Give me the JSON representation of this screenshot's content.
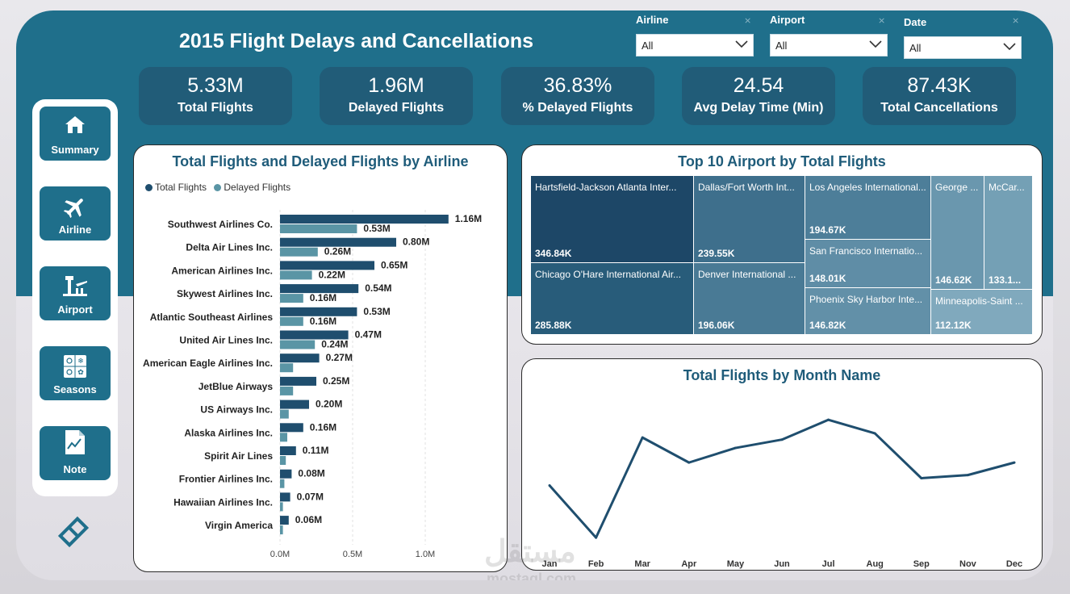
{
  "header": {
    "title": "2015 Flight Delays and Cancellations"
  },
  "filters": [
    {
      "label": "Airline",
      "value": "All"
    },
    {
      "label": "Airport",
      "value": "All"
    },
    {
      "label": "Date",
      "value": "All"
    }
  ],
  "kpis": [
    {
      "value": "5.33M",
      "label": "Total Flights"
    },
    {
      "value": "1.96M",
      "label": "Delayed Flights"
    },
    {
      "value": "36.83%",
      "label": "% Delayed Flights"
    },
    {
      "value": "24.54",
      "label": "Avg Delay Time (Min)"
    },
    {
      "value": "87.43K",
      "label": "Total Cancellations"
    }
  ],
  "nav": {
    "items": [
      {
        "label": "Summary",
        "icon": "home-icon"
      },
      {
        "label": "Airline",
        "icon": "airplane-icon"
      },
      {
        "label": "Airport",
        "icon": "airport-tower-icon"
      },
      {
        "label": "Seasons",
        "icon": "seasons-icon"
      },
      {
        "label": "Note",
        "icon": "note-icon"
      }
    ],
    "logo_icon": "diamond-logo-icon"
  },
  "colors": {
    "band": "#1f6f8b",
    "total": "#1f4e6e",
    "delayed": "#5a95a5",
    "line": "#1f4e6e"
  },
  "watermark": {
    "text": "مستقل",
    "sub": "mostaql.com"
  },
  "chart_data": [
    {
      "type": "bar",
      "orientation": "horizontal",
      "title": "Total Flights and Delayed Flights by Airline",
      "categories": [
        "Southwest Airlines Co.",
        "Delta Air Lines Inc.",
        "American Airlines Inc.",
        "Skywest Airlines Inc.",
        "Atlantic Southeast Airlines",
        "United Air Lines Inc.",
        "American Eagle Airlines Inc.",
        "JetBlue Airways",
        "US Airways Inc.",
        "Alaska Airlines Inc.",
        "Spirit Air Lines",
        "Frontier Airlines Inc.",
        "Hawaiian Airlines Inc.",
        "Virgin America"
      ],
      "series": [
        {
          "name": "Total Flights",
          "values": [
            1.16,
            0.8,
            0.65,
            0.54,
            0.53,
            0.47,
            0.27,
            0.25,
            0.2,
            0.16,
            0.11,
            0.08,
            0.07,
            0.06
          ],
          "labels": [
            "1.16M",
            "0.80M",
            "0.65M",
            "0.54M",
            "0.53M",
            "0.47M",
            "0.27M",
            "0.25M",
            "0.20M",
            "0.16M",
            "0.11M",
            "0.08M",
            "0.07M",
            "0.06M"
          ]
        },
        {
          "name": "Delayed Flights",
          "values": [
            0.53,
            0.26,
            0.22,
            0.16,
            0.16,
            0.24,
            0.09,
            0.09,
            0.06,
            0.05,
            0.04,
            0.03,
            0.02,
            0.02
          ],
          "labels": [
            "0.53M",
            "0.26M",
            "0.22M",
            "0.16M",
            "0.16M",
            "0.24M",
            "",
            "",
            "",
            "",
            "",
            "",
            "",
            ""
          ]
        }
      ],
      "xlim": [
        0,
        1.2
      ],
      "ticks": [
        0,
        0.5,
        1.0
      ],
      "tick_labels": [
        "0.0M",
        "0.5M",
        "1.0M"
      ],
      "unit": "M"
    },
    {
      "type": "treemap",
      "title": "Top 10 Airport by Total Flights",
      "items": [
        {
          "name": "Hartsfield-Jackson Atlanta Inter...",
          "value": 346.84,
          "label": "346.84K"
        },
        {
          "name": "Chicago O'Hare International Air...",
          "value": 285.88,
          "label": "285.88K"
        },
        {
          "name": "Dallas/Fort Worth Int...",
          "value": 239.55,
          "label": "239.55K"
        },
        {
          "name": "Denver International ...",
          "value": 196.06,
          "label": "196.06K"
        },
        {
          "name": "Los Angeles International...",
          "value": 194.67,
          "label": "194.67K"
        },
        {
          "name": "San Francisco Internatio...",
          "value": 148.01,
          "label": "148.01K"
        },
        {
          "name": "Phoenix Sky Harbor Inte...",
          "value": 146.82,
          "label": "146.82K"
        },
        {
          "name": "George ...",
          "value": 146.62,
          "label": "146.62K"
        },
        {
          "name": "McCar...",
          "value": 133.1,
          "label": "133.1..."
        },
        {
          "name": "Minneapolis-Saint ...",
          "value": 112.12,
          "label": "112.12K"
        }
      ]
    },
    {
      "type": "line",
      "title": "Total Flights by Month Name",
      "categories": [
        "Jan",
        "Feb",
        "Mar",
        "Apr",
        "May",
        "Jun",
        "Jul",
        "Aug",
        "Sep",
        "Nov",
        "Dec"
      ],
      "values": [
        458,
        408,
        504,
        480,
        494,
        502,
        521,
        508,
        465,
        468,
        480
      ],
      "ylim": [
        405,
        525
      ],
      "unit": "K"
    }
  ]
}
